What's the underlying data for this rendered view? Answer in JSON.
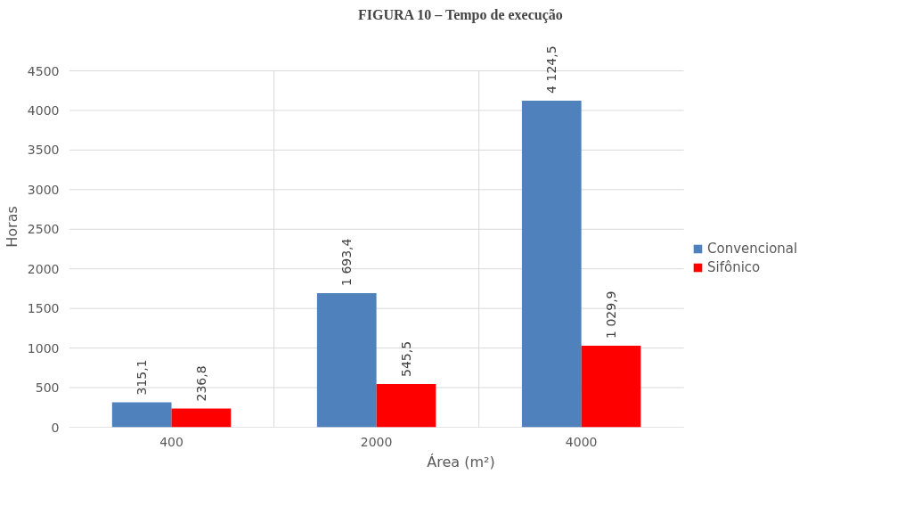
{
  "chart_data": {
    "type": "bar",
    "title": "FIGURA 10 – Tempo de execução",
    "xlabel": "Área (m²)",
    "ylabel": "Horas",
    "categories": [
      "400",
      "2000",
      "4000"
    ],
    "series": [
      {
        "name": "Convencional",
        "color": "#4f81bd",
        "values": [
          315.1,
          1693.4,
          4124.5
        ],
        "value_labels": [
          "315,1",
          "1 693,4",
          "4 124,5"
        ]
      },
      {
        "name": "Sifônico",
        "color": "#ff0000",
        "values": [
          236.8,
          545.5,
          1029.9
        ],
        "value_labels": [
          "236,8",
          "545,5",
          "1 029,9"
        ]
      }
    ],
    "ylim": [
      0,
      4500
    ],
    "yticks": [
      0,
      500,
      1000,
      1500,
      2000,
      2500,
      3000,
      3500,
      4000,
      4500
    ],
    "grid": true,
    "legend": "right"
  }
}
